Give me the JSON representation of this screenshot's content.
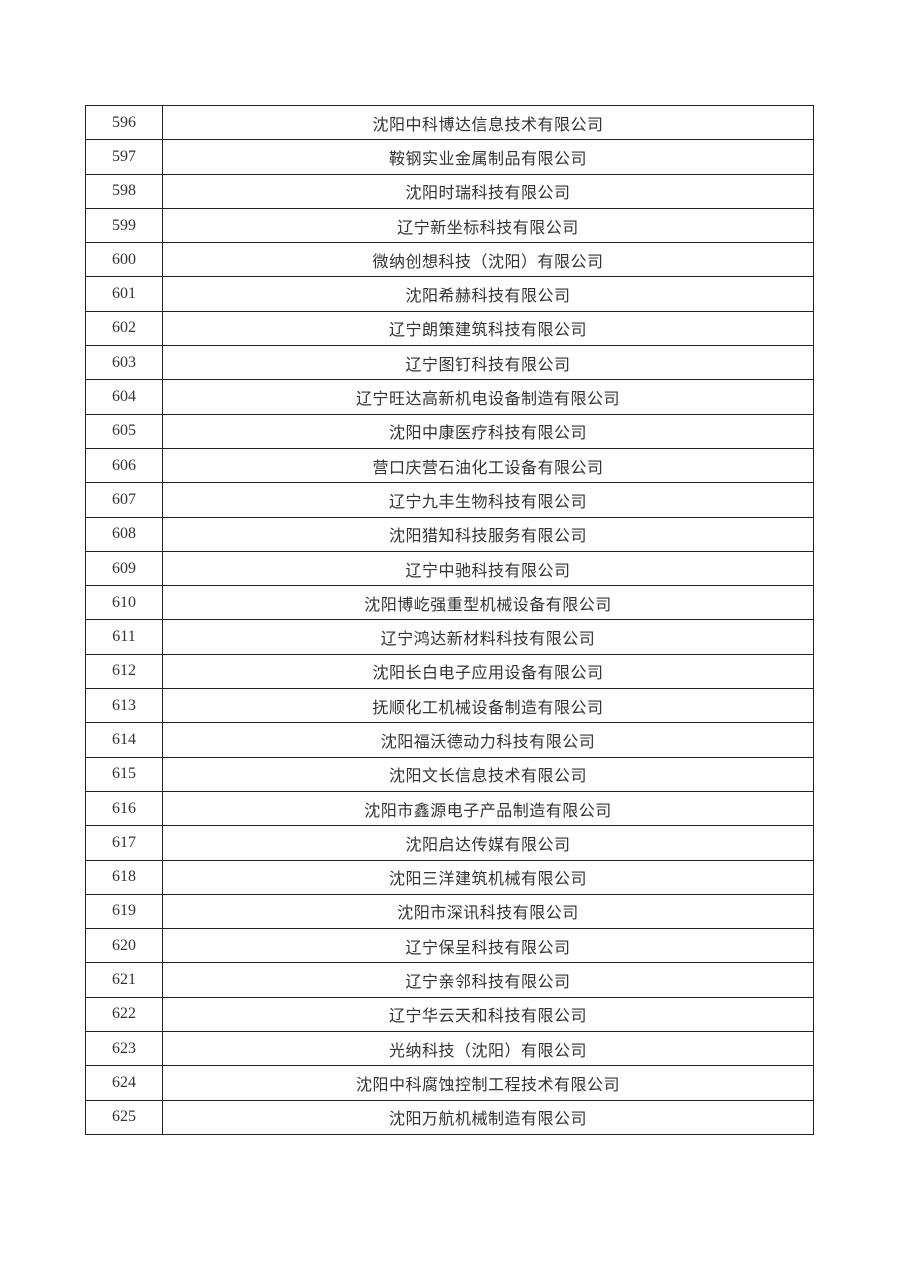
{
  "table": {
    "rows": [
      {
        "no": "596",
        "name": "沈阳中科博达信息技术有限公司"
      },
      {
        "no": "597",
        "name": "鞍钢实业金属制品有限公司"
      },
      {
        "no": "598",
        "name": "沈阳时瑞科技有限公司"
      },
      {
        "no": "599",
        "name": "辽宁新坐标科技有限公司"
      },
      {
        "no": "600",
        "name": "微纳创想科技（沈阳）有限公司"
      },
      {
        "no": "601",
        "name": "沈阳希赫科技有限公司"
      },
      {
        "no": "602",
        "name": "辽宁朗策建筑科技有限公司"
      },
      {
        "no": "603",
        "name": "辽宁图钉科技有限公司"
      },
      {
        "no": "604",
        "name": "辽宁旺达高新机电设备制造有限公司"
      },
      {
        "no": "605",
        "name": "沈阳中康医疗科技有限公司"
      },
      {
        "no": "606",
        "name": "营口庆营石油化工设备有限公司"
      },
      {
        "no": "607",
        "name": "辽宁九丰生物科技有限公司"
      },
      {
        "no": "608",
        "name": "沈阳猎知科技服务有限公司"
      },
      {
        "no": "609",
        "name": "辽宁中驰科技有限公司"
      },
      {
        "no": "610",
        "name": "沈阳博屹强重型机械设备有限公司"
      },
      {
        "no": "611",
        "name": "辽宁鸿达新材料科技有限公司"
      },
      {
        "no": "612",
        "name": "沈阳长白电子应用设备有限公司"
      },
      {
        "no": "613",
        "name": "抚顺化工机械设备制造有限公司"
      },
      {
        "no": "614",
        "name": "沈阳福沃德动力科技有限公司"
      },
      {
        "no": "615",
        "name": "沈阳文长信息技术有限公司"
      },
      {
        "no": "616",
        "name": "沈阳市鑫源电子产品制造有限公司"
      },
      {
        "no": "617",
        "name": "沈阳启达传媒有限公司"
      },
      {
        "no": "618",
        "name": "沈阳三洋建筑机械有限公司"
      },
      {
        "no": "619",
        "name": "沈阳市深讯科技有限公司"
      },
      {
        "no": "620",
        "name": "辽宁保呈科技有限公司"
      },
      {
        "no": "621",
        "name": "辽宁亲邻科技有限公司"
      },
      {
        "no": "622",
        "name": "辽宁华云天和科技有限公司"
      },
      {
        "no": "623",
        "name": "光纳科技（沈阳）有限公司"
      },
      {
        "no": "624",
        "name": "沈阳中科腐蚀控制工程技术有限公司"
      },
      {
        "no": "625",
        "name": "沈阳万航机械制造有限公司"
      }
    ]
  }
}
